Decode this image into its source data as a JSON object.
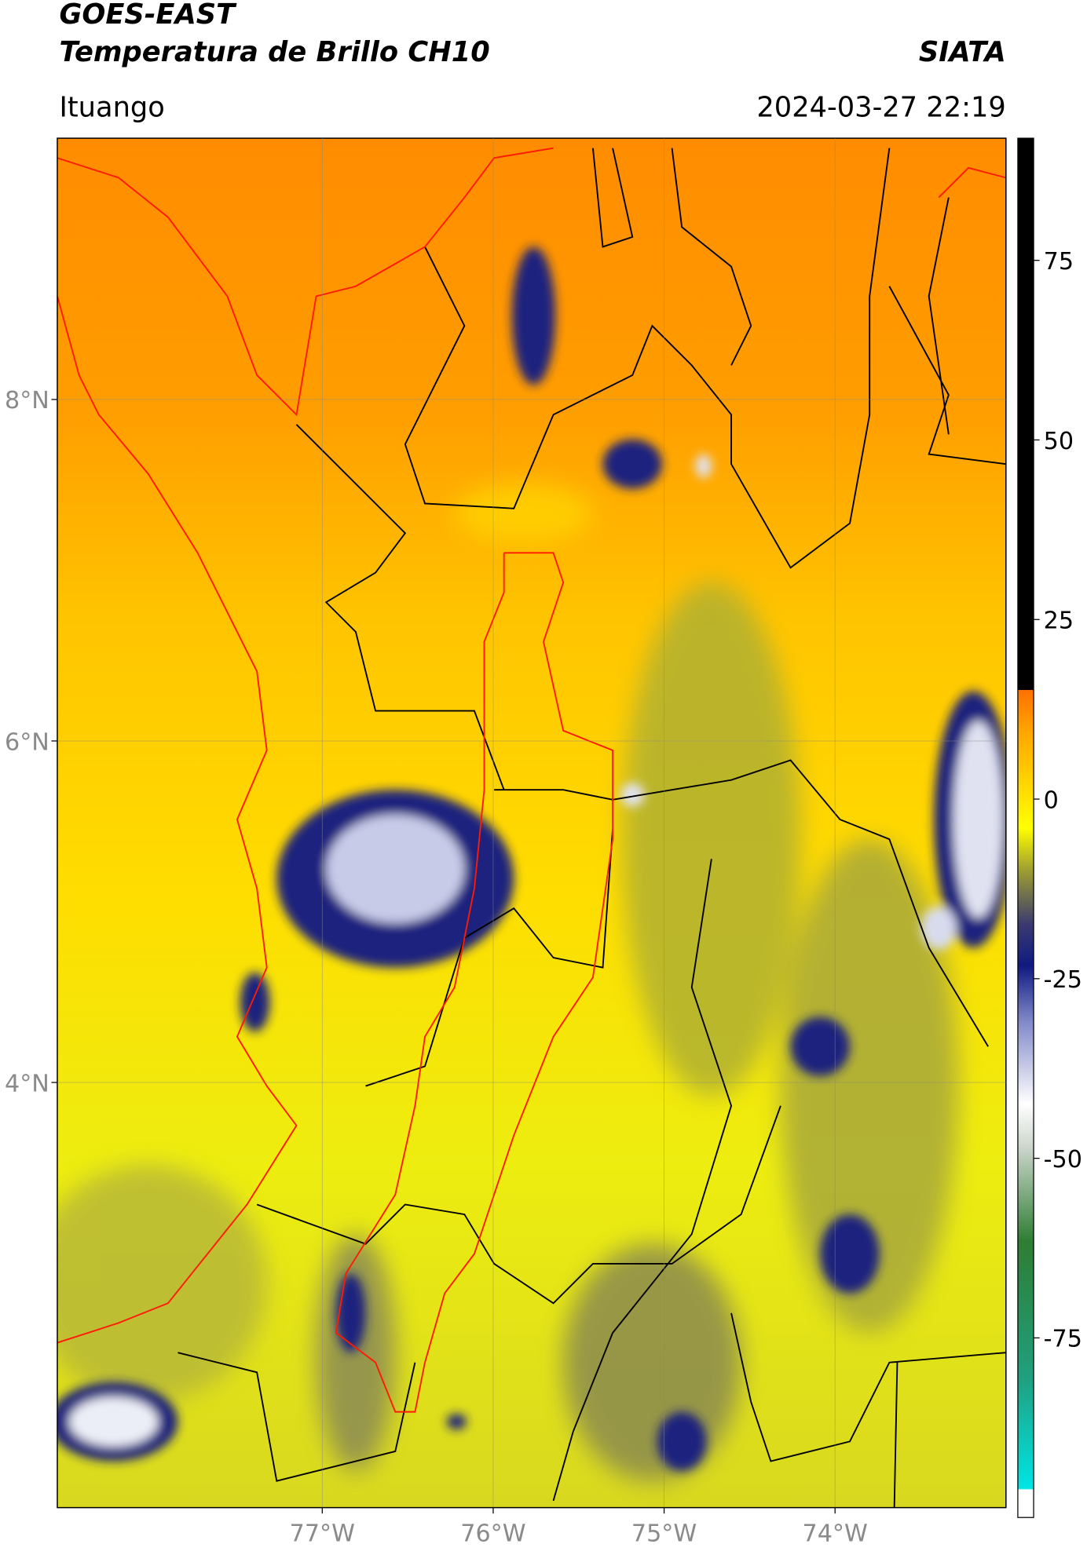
{
  "header": {
    "title": "GOES-EAST",
    "subtitle": "Temperatura de Brillo CH10",
    "brand": "SIATA",
    "location": "Ituango",
    "datetime": "2024-03-27 22:19"
  },
  "map": {
    "lat_range": [
      1.51,
      9.53
    ],
    "lon_range": [
      -78.55,
      -73.0
    ],
    "lat_ticks": [
      {
        "value": 8,
        "label": "8°N"
      },
      {
        "value": 6,
        "label": "6°N"
      },
      {
        "value": 4,
        "label": "4°N"
      }
    ],
    "lon_ticks": [
      {
        "value": -77,
        "label": "77°W"
      },
      {
        "value": -76,
        "label": "76°W"
      },
      {
        "value": -75,
        "label": "75°W"
      },
      {
        "value": -74,
        "label": "74°W"
      }
    ]
  },
  "colorbar": {
    "range": [
      -100,
      92
    ],
    "ticks": [
      75,
      50,
      25,
      0,
      -25,
      -50,
      -75
    ]
  }
}
